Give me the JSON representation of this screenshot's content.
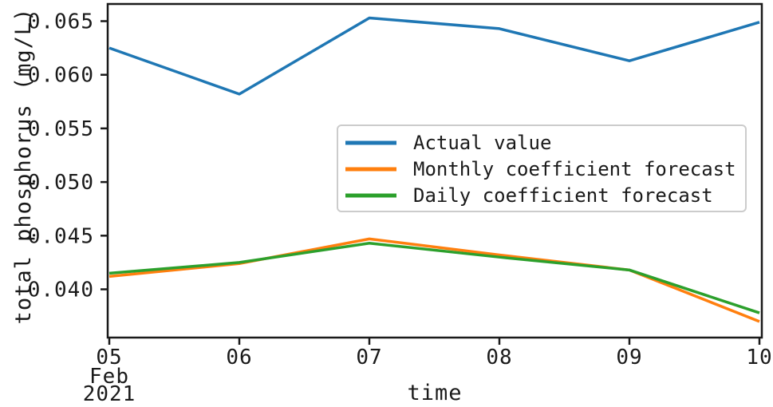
{
  "chart_data": {
    "type": "line",
    "title": "",
    "xlabel": "time",
    "ylabel": "total phosphorus (mg/L)",
    "categories": [
      "05",
      "06",
      "07",
      "08",
      "09",
      "10"
    ],
    "x_first_tick_sublabels": [
      "Feb",
      "2021"
    ],
    "series": [
      {
        "name": "Actual value",
        "color": "#1f77b4",
        "values": [
          0.0625,
          0.0582,
          0.0653,
          0.0643,
          0.0613,
          0.0649
        ]
      },
      {
        "name": "Monthly coefficient forecast",
        "color": "#ff7f0e",
        "values": [
          0.0412,
          0.0424,
          0.0447,
          0.0432,
          0.0418,
          0.037
        ]
      },
      {
        "name": "Daily coefficient forecast",
        "color": "#2ca02c",
        "values": [
          0.0415,
          0.0425,
          0.0443,
          0.043,
          0.0418,
          0.0378
        ]
      }
    ],
    "y_ticks": [
      {
        "value": 0.065,
        "label": "0.065"
      },
      {
        "value": 0.06,
        "label": "0.060"
      },
      {
        "value": 0.055,
        "label": "0.055"
      },
      {
        "value": 0.05,
        "label": "0.050"
      },
      {
        "value": 0.045,
        "label": "0.045"
      },
      {
        "value": 0.04,
        "label": "0.040"
      }
    ],
    "ylim": [
      0.0355,
      0.0666
    ],
    "grid": false,
    "legend": {
      "position": "center-right",
      "border_color": "#cccccc",
      "background": "#ffffff"
    },
    "axis_color": "#1a1a1a"
  }
}
